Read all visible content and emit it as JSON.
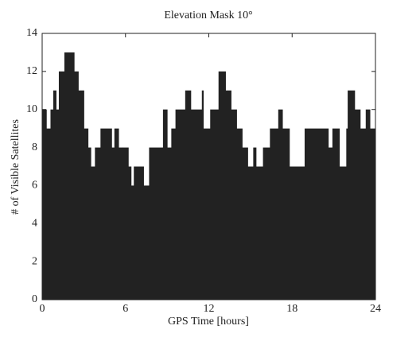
{
  "chart_data": {
    "type": "step-area",
    "title": "Elevation Mask 10°",
    "xlabel": "GPS Time [hours]",
    "ylabel": "# of Visible Satellites",
    "x": [
      0,
      0.3,
      0.6,
      0.8,
      1,
      1.2,
      1.6,
      2.3,
      2.6,
      3,
      3.3,
      3.5,
      3.8,
      4.2,
      5,
      5.2,
      5.5,
      5.8,
      6.2,
      6.4,
      6.6,
      7.3,
      7.7,
      8.7,
      9,
      9.3,
      9.6,
      10.3,
      10.7,
      11.5,
      11.6,
      12.1,
      12.7,
      13.2,
      13.6,
      14,
      14.4,
      14.8,
      15.2,
      15.4,
      15.9,
      16.4,
      17,
      17.3,
      17.8,
      18.2,
      18.9,
      20.6,
      20.9,
      21.4,
      21.9,
      22,
      22.5,
      22.9,
      23.3,
      23.6
    ],
    "values": [
      10,
      9,
      10,
      11,
      10,
      12,
      13,
      12,
      11,
      9,
      8,
      7,
      8,
      9,
      8,
      9,
      8,
      8,
      7,
      6,
      7,
      6,
      8,
      10,
      8,
      9,
      10,
      11,
      10,
      11,
      9,
      10,
      12,
      11,
      10,
      9,
      8,
      7,
      8,
      7,
      8,
      9,
      10,
      9,
      7,
      7,
      9,
      8,
      9,
      7,
      9,
      11,
      10,
      9,
      10,
      9
    ],
    "color": "#222222",
    "xlim": [
      0,
      24
    ],
    "xticks": [
      0,
      6,
      12,
      18,
      24
    ],
    "ylim": [
      0,
      14
    ],
    "yticks": [
      0,
      2,
      4,
      6,
      8,
      10,
      12,
      14
    ]
  }
}
